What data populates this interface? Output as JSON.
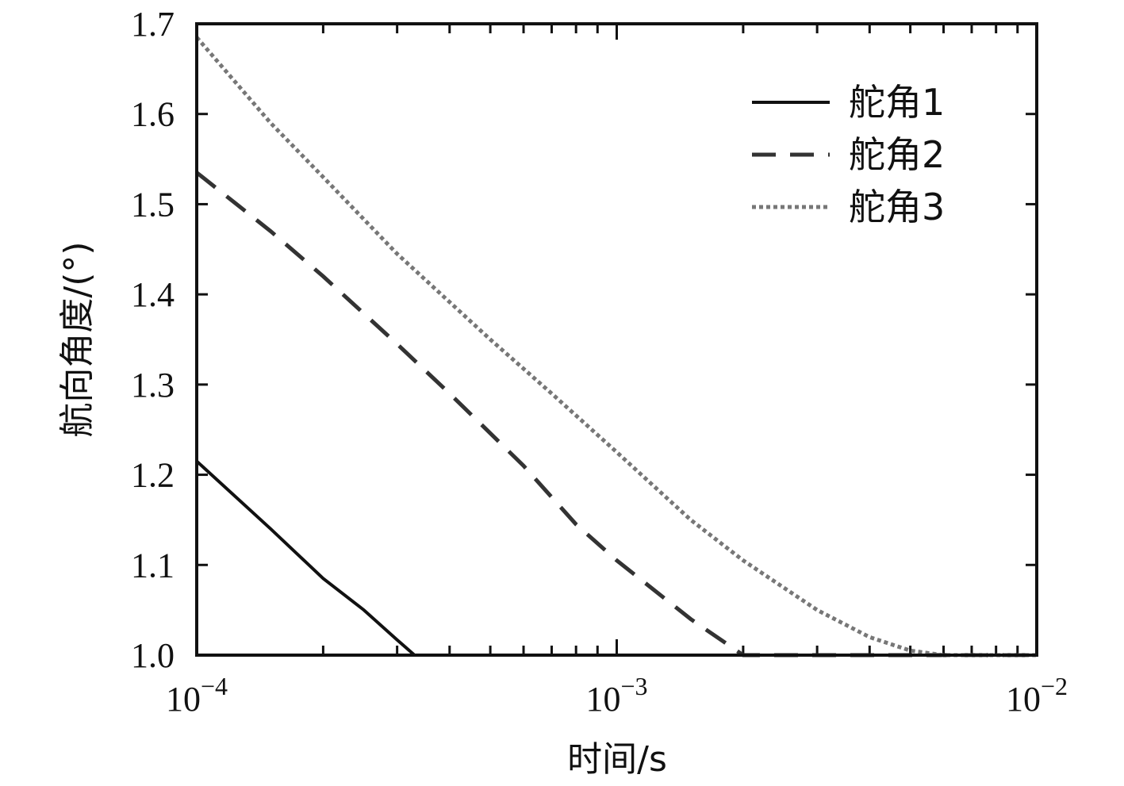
{
  "chart_data": {
    "type": "line",
    "xlabel": "时间/s",
    "ylabel": "航向角度/(°)",
    "x_scale": "log",
    "xlim": [
      0.0001,
      0.01
    ],
    "ylim": [
      1.0,
      1.7
    ],
    "x_ticks": [
      {
        "value": 0.0001,
        "label_base": "10",
        "label_exp": "−4"
      },
      {
        "value": 0.001,
        "label_base": "10",
        "label_exp": "−3"
      },
      {
        "value": 0.01,
        "label_base": "10",
        "label_exp": "−2"
      }
    ],
    "y_ticks": [
      "1.0",
      "1.1",
      "1.2",
      "1.3",
      "1.4",
      "1.5",
      "1.6",
      "1.7"
    ],
    "grid": false,
    "legend": "top-right",
    "series": [
      {
        "name": "舵角1",
        "style": "solid",
        "color": "#111111",
        "x": [
          0.0001,
          0.00015,
          0.0002,
          0.00025,
          0.0003,
          0.00033,
          0.00035,
          0.0004,
          0.0006,
          0.001,
          0.003,
          0.01
        ],
        "y": [
          1.215,
          1.14,
          1.085,
          1.05,
          1.017,
          1.0,
          1.0,
          1.0,
          1.0,
          1.0,
          1.0,
          1.0
        ]
      },
      {
        "name": "舵角2",
        "style": "dashed",
        "color": "#333333",
        "x": [
          0.0001,
          0.00015,
          0.0002,
          0.0003,
          0.0004,
          0.0006,
          0.0008,
          0.001,
          0.0015,
          0.002,
          0.003,
          0.005,
          0.01
        ],
        "y": [
          1.535,
          1.47,
          1.42,
          1.345,
          1.29,
          1.21,
          1.145,
          1.105,
          1.04,
          1.0,
          1.0,
          1.0,
          1.0
        ]
      },
      {
        "name": "舵角3",
        "style": "dotted",
        "color": "#777777",
        "x": [
          0.0001,
          0.00015,
          0.0002,
          0.0003,
          0.0005,
          0.0007,
          0.001,
          0.0015,
          0.002,
          0.003,
          0.004,
          0.005,
          0.006,
          0.008,
          0.01
        ],
        "y": [
          1.685,
          1.59,
          1.53,
          1.445,
          1.35,
          1.29,
          1.225,
          1.15,
          1.105,
          1.05,
          1.02,
          1.005,
          1.0,
          1.0,
          1.0
        ]
      }
    ]
  }
}
